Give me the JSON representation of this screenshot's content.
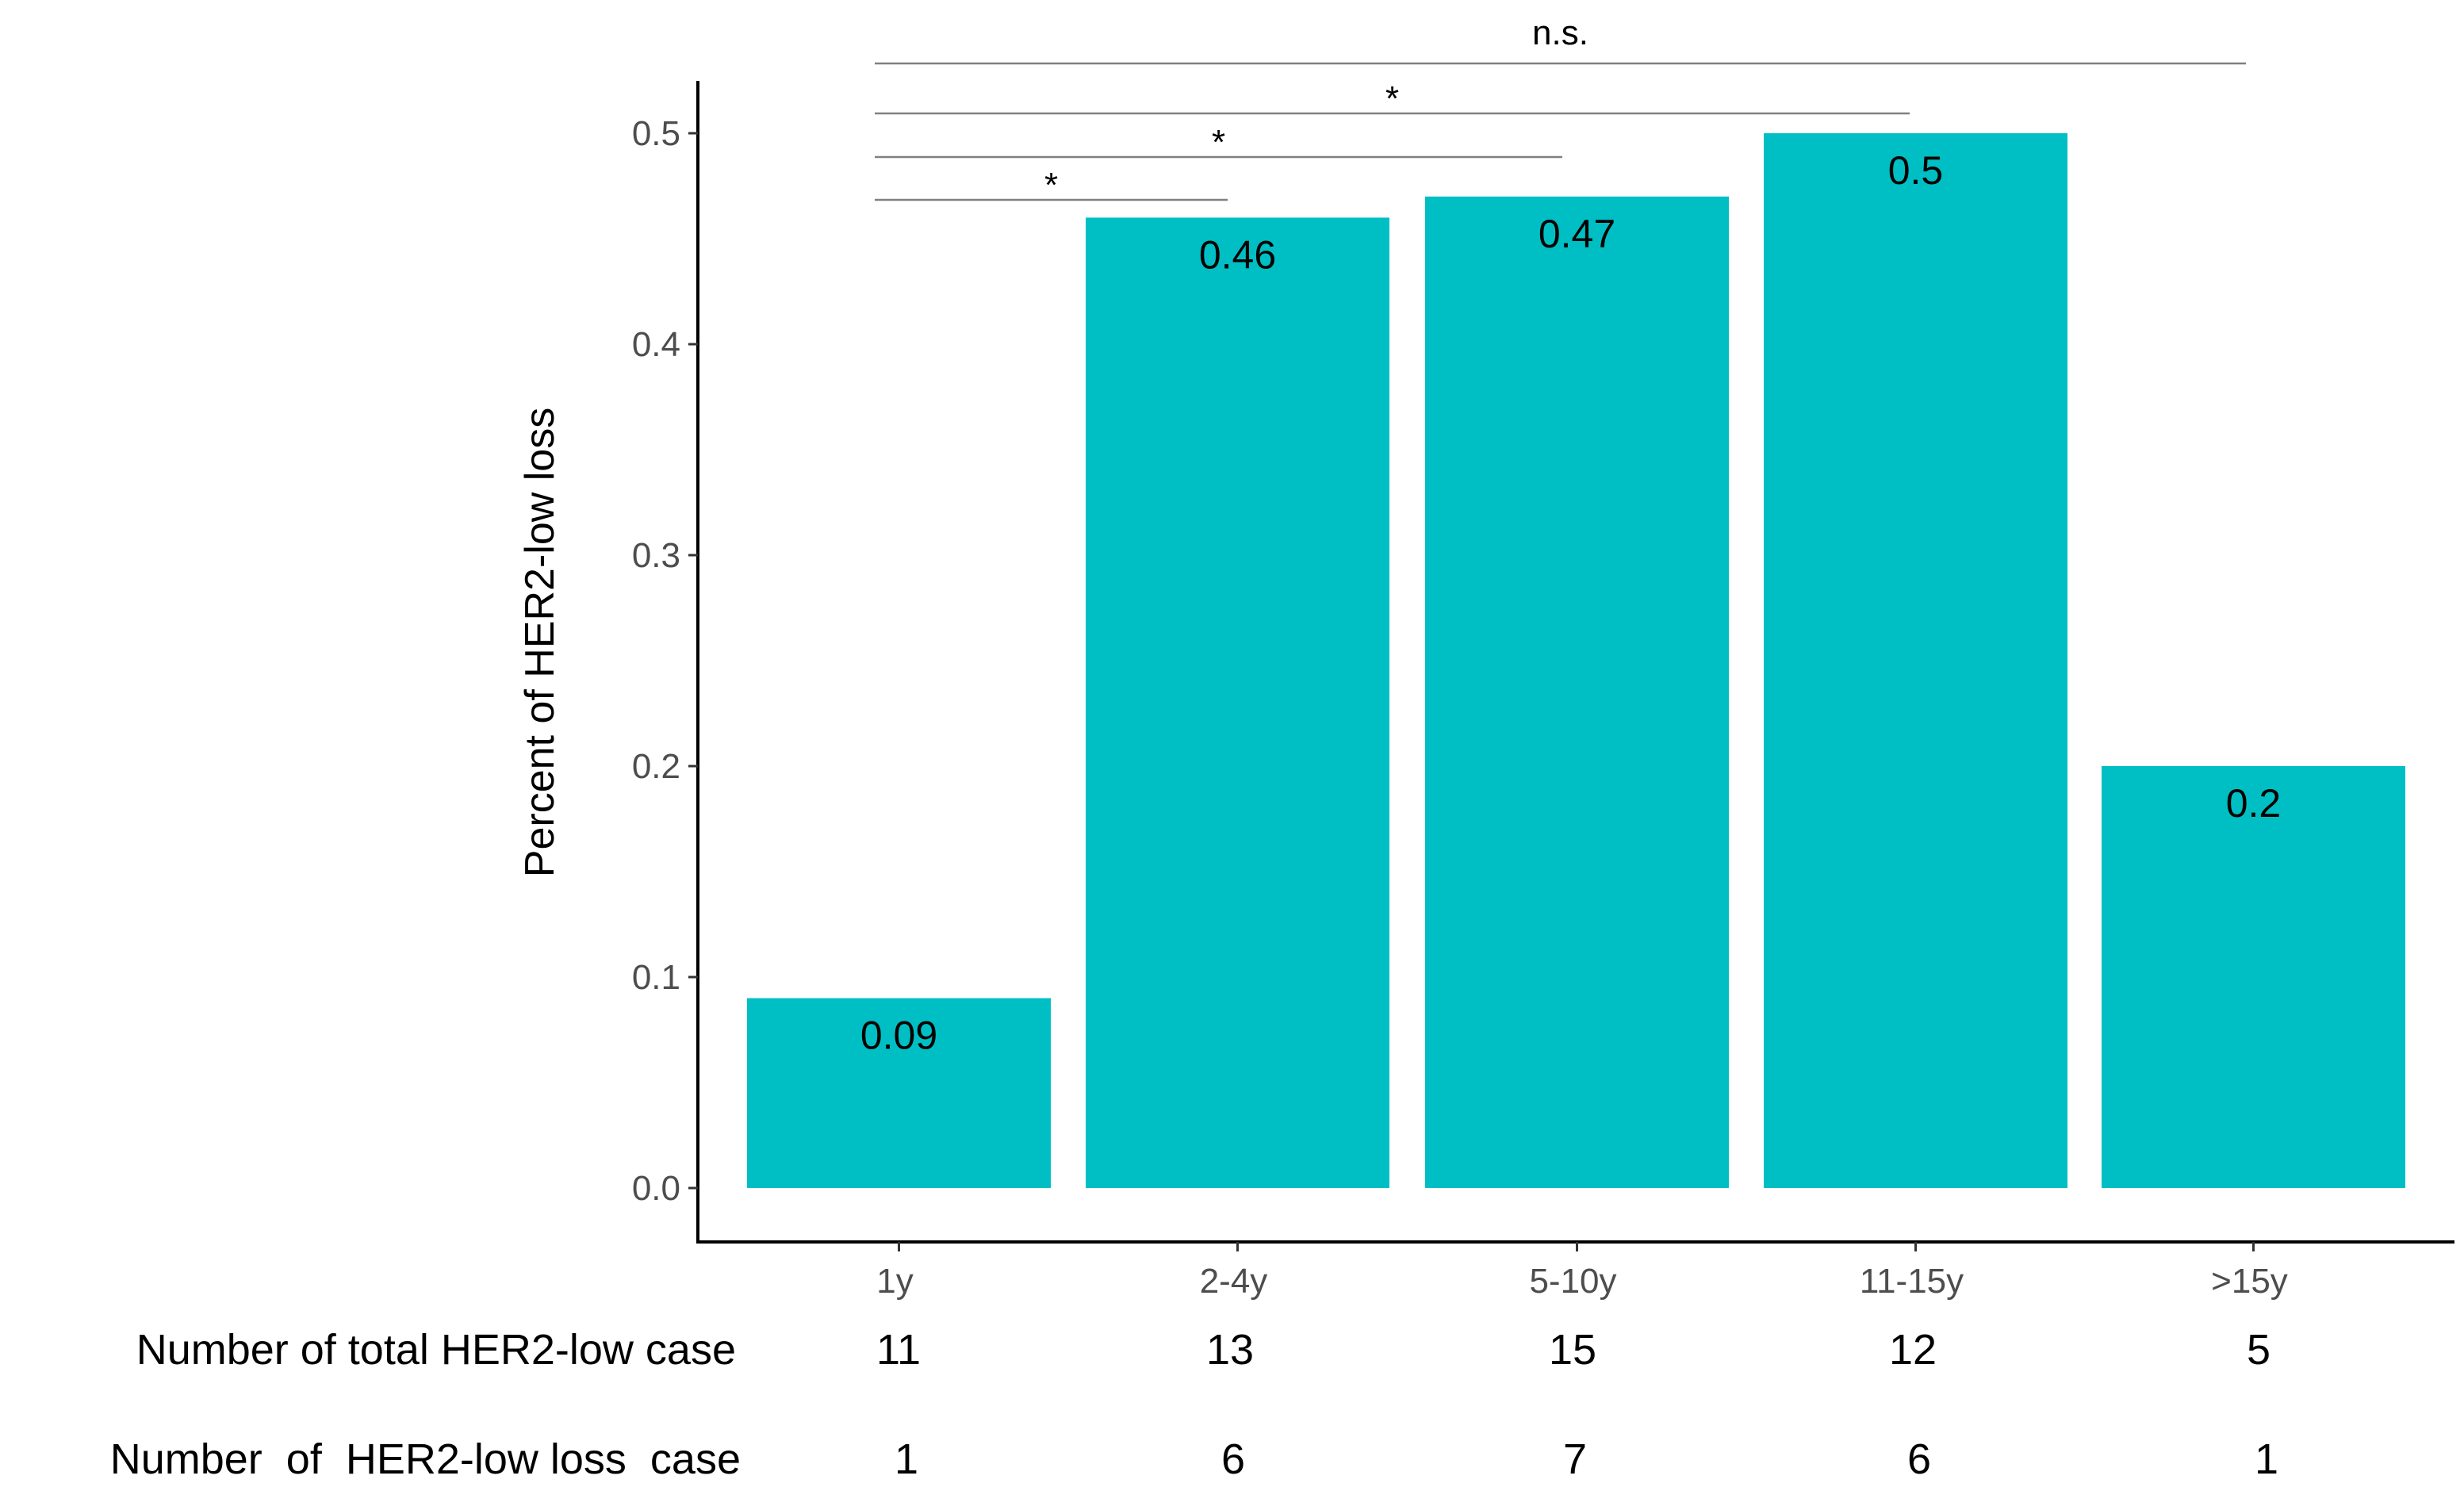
{
  "chart_data": {
    "type": "bar",
    "categories": [
      "1y",
      "2-4y",
      "5-10y",
      "11-15y",
      ">15y"
    ],
    "values": [
      0.09,
      0.46,
      0.47,
      0.5,
      0.2
    ],
    "value_labels": [
      "0.09",
      "0.46",
      "0.47",
      "0.5",
      "0.2"
    ],
    "title": "",
    "xlabel": "",
    "ylabel": "Percent of HER2-low loss",
    "ylim": [
      0,
      0.55
    ],
    "yticks": [
      0.0,
      0.1,
      0.2,
      0.3,
      0.4,
      0.5
    ],
    "ytick_labels": [
      "0.0",
      "0.1",
      "0.2",
      "0.3",
      "0.4",
      "0.5"
    ],
    "bar_color": "#00BFC4",
    "grid": false,
    "significance": [
      {
        "from": "1y",
        "to": "2-4y",
        "label": "*"
      },
      {
        "from": "1y",
        "to": "5-10y",
        "label": "*"
      },
      {
        "from": "1y",
        "to": "11-15y",
        "label": "*"
      },
      {
        "from": "1y",
        "to": ">15y",
        "label": "n.s."
      }
    ],
    "table_rows": [
      {
        "label": "Number of total HER2-low case",
        "values": [
          "11",
          "13",
          "15",
          "12",
          "5"
        ]
      },
      {
        "label": "Number  of  HER2-low loss  case",
        "values": [
          "1",
          "6",
          "7",
          "6",
          "1"
        ]
      }
    ]
  }
}
